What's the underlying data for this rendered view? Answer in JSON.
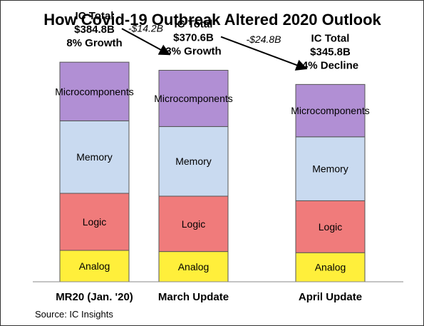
{
  "chart_data": {
    "type": "bar",
    "stacked": true,
    "title": "How Covid-19 Outbreak Altered 2020 Outlook",
    "source": "Source: IC Insights",
    "categories": [
      "MR20 (Jan. '20)",
      "March Update",
      "April Update"
    ],
    "totals": [
      {
        "line1": "IC Total",
        "line2": "$384.8B",
        "line3": "8% Growth",
        "value": 384.8
      },
      {
        "line1": "IC Total",
        "line2": "$370.6B",
        "line3": "3% Growth",
        "value": 370.6
      },
      {
        "line1": "IC Total",
        "line2": "$345.8B",
        "line3": "4% Decline",
        "value": 345.8
      }
    ],
    "changes": [
      "-$14.2B",
      "-$24.8B"
    ],
    "series": [
      {
        "name": "Analog",
        "color": "#ffef3b",
        "values": [
          55,
          53,
          51
        ]
      },
      {
        "name": "Logic",
        "color": "#f07b7b",
        "values": [
          100,
          97,
          91
        ]
      },
      {
        "name": "Memory",
        "color": "#c9daf0",
        "values": [
          127,
          122,
          112
        ]
      },
      {
        "name": "Microcomponents",
        "color": "#b18fd4",
        "values": [
          102.8,
          98.6,
          91.8
        ]
      }
    ],
    "ylim": [
      0,
      400
    ],
    "grid": false,
    "legend": "none"
  }
}
